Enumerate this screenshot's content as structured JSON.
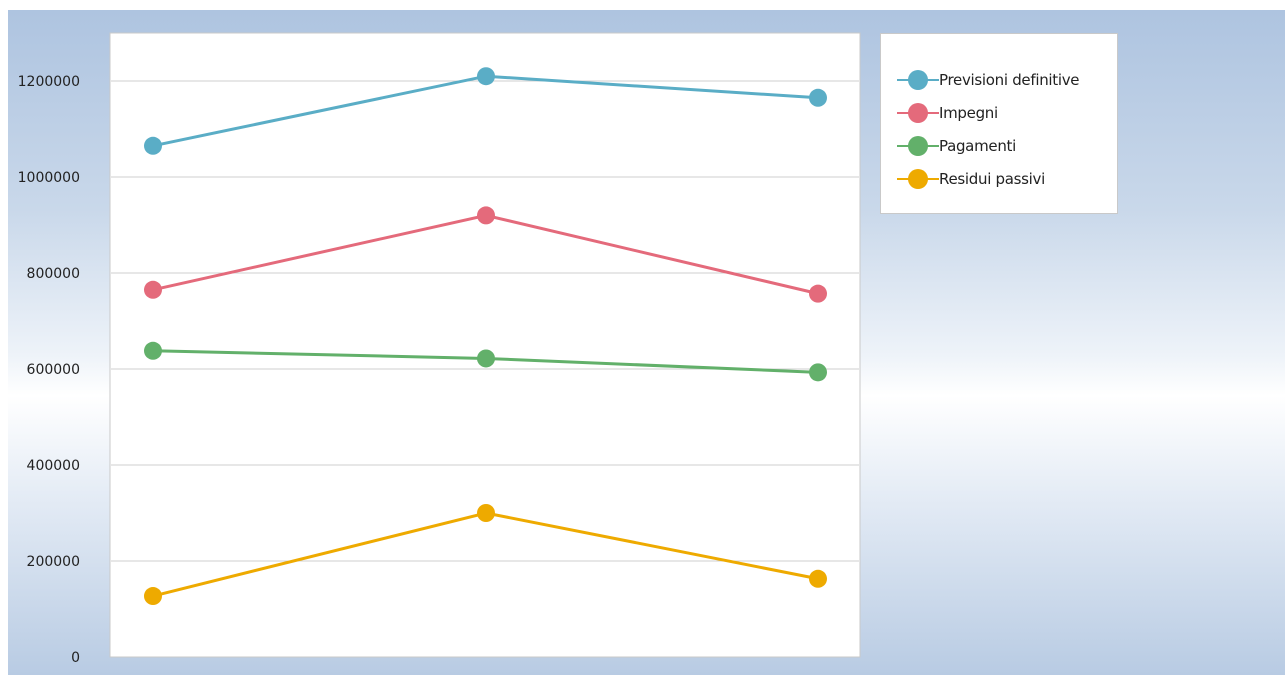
{
  "chart_data": {
    "type": "line",
    "title": "",
    "xlabel": "",
    "ylabel": "",
    "ylim": [
      0,
      1300000
    ],
    "y_ticks": [
      "0",
      "200000",
      "400000",
      "600000",
      "800000",
      "1000000",
      "1200000"
    ],
    "y_tick_values": [
      0,
      200000,
      400000,
      600000,
      800000,
      1000000,
      1200000
    ],
    "x_count": 3,
    "grid": true,
    "legend_position": "right",
    "series": [
      {
        "name": "Previsioni definitive",
        "color": "#5aadc6",
        "values": [
          1065000,
          1210000,
          1165000
        ]
      },
      {
        "name": "Impegni",
        "color": "#e46a7b",
        "values": [
          765000,
          920000,
          757000
        ]
      },
      {
        "name": "Pagamenti",
        "color": "#62b06a",
        "values": [
          638000,
          622000,
          593000
        ]
      },
      {
        "name": "Residui passivi",
        "color": "#eeaa00",
        "values": [
          127000,
          300000,
          163000
        ]
      }
    ]
  }
}
